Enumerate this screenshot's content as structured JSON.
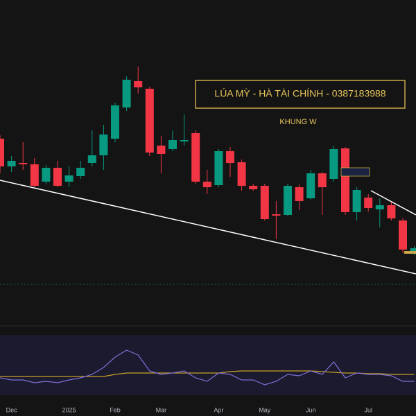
{
  "chart_data": {
    "type": "candlestick",
    "title": "LÚA MỲ - HÀ TÀI CHÍNH - 0387183988",
    "subtitle": "KHUNG W",
    "categories": [
      null,
      "Dec",
      null,
      null,
      null,
      null,
      "2025",
      null,
      null,
      null,
      "Feb",
      null,
      null,
      null,
      "Mar",
      null,
      null,
      null,
      null,
      "Apr",
      null,
      null,
      null,
      "May",
      null,
      null,
      null,
      "Jun",
      null,
      null,
      null,
      null,
      "Jul",
      null,
      null,
      null,
      null
    ],
    "open": [
      200,
      160,
      165,
      163,
      138,
      158,
      138,
      146,
      165,
      176,
      200,
      245,
      283,
      272,
      190,
      185,
      196,
      208,
      138,
      133,
      182,
      166,
      132,
      132,
      91,
      90,
      130,
      114,
      150,
      142,
      186,
      94,
      115,
      98,
      104,
      82,
      35
    ],
    "high": [
      205,
      175,
      195,
      172,
      162,
      168,
      160,
      168,
      212,
      220,
      252,
      290,
      304,
      275,
      204,
      212,
      235,
      212,
      155,
      185,
      188,
      170,
      135,
      135,
      110,
      135,
      134,
      155,
      152,
      190,
      188,
      130,
      120,
      114,
      110,
      85,
      45
    ],
    "low": [
      150,
      152,
      155,
      130,
      134,
      130,
      130,
      142,
      160,
      155,
      195,
      240,
      265,
      175,
      150,
      182,
      190,
      135,
      120,
      130,
      145,
      125,
      125,
      82,
      55,
      88,
      97,
      112,
      90,
      138,
      90,
      82,
      95,
      72,
      82,
      35,
      32
    ],
    "close": [
      160,
      168,
      163,
      132,
      158,
      132,
      147,
      158,
      176,
      206,
      248,
      285,
      274,
      180,
      178,
      198,
      198,
      138,
      130,
      182,
      165,
      132,
      127,
      84,
      89,
      132,
      110,
      150,
      130,
      185,
      94,
      126,
      100,
      104,
      85,
      40,
      42
    ],
    "up_color": "#089981",
    "down_color": "#f23645",
    "ylim": [
      0,
      400
    ],
    "rsi": {
      "color": "#7e6fd8",
      "ma_color": "#c9a227",
      "ylim": [
        20,
        120
      ],
      "values": [
        55,
        52,
        52,
        48,
        50,
        48,
        52,
        55,
        60,
        70,
        85,
        95,
        88,
        65,
        60,
        62,
        65,
        55,
        50,
        62,
        60,
        52,
        52,
        45,
        50,
        60,
        58,
        65,
        60,
        78,
        55,
        62,
        60,
        60,
        58,
        50,
        50
      ],
      "ma_values": [
        57,
        57,
        57,
        57,
        57,
        57,
        57,
        57,
        57,
        57,
        60,
        62,
        62,
        62,
        62,
        62,
        62,
        62,
        62,
        62,
        64,
        65,
        65,
        65,
        65,
        65,
        65,
        65,
        64,
        63,
        62,
        62,
        61,
        61,
        60,
        60,
        60
      ]
    }
  }
}
